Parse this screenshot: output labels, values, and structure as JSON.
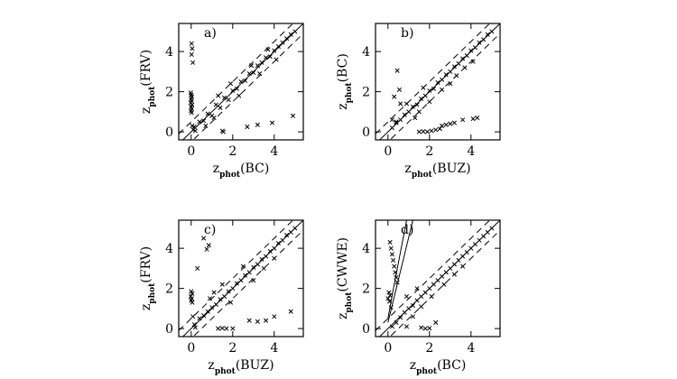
{
  "chart_data": [
    {
      "type": "scatter",
      "panel_label": "a)",
      "xlabel": {
        "main": "z",
        "sub": "phot",
        "tail": "(BC)"
      },
      "ylabel": {
        "main": "z",
        "sub": "phot",
        "tail": "(FRV)"
      },
      "xlim": [
        -0.6,
        5.4
      ],
      "ylim": [
        -0.4,
        5.4
      ],
      "xticks": [
        0,
        2,
        4
      ],
      "yticks": [
        0,
        2,
        4
      ],
      "xtick_labels": [
        "0",
        "2",
        "4"
      ],
      "ytick_labels": [
        "0",
        "2",
        "4"
      ],
      "reference_lines": {
        "identity": true,
        "dashed_offsets": [
          0.5,
          -0.5
        ]
      },
      "extra_lines": [],
      "points": [
        [
          0.02,
          4.4
        ],
        [
          0.05,
          4.15
        ],
        [
          0.02,
          3.85
        ],
        [
          0.08,
          3.45
        ],
        [
          -0.02,
          1.95
        ],
        [
          0.0,
          1.85
        ],
        [
          0.03,
          1.75
        ],
        [
          0.0,
          1.65
        ],
        [
          0.02,
          1.55
        ],
        [
          -0.02,
          1.45
        ],
        [
          0.04,
          1.35
        ],
        [
          0.0,
          1.25
        ],
        [
          0.03,
          1.15
        ],
        [
          -0.01,
          1.05
        ],
        [
          0.02,
          0.95
        ],
        [
          0.05,
          0.3
        ],
        [
          0.1,
          0.1
        ],
        [
          0.15,
          0.25
        ],
        [
          0.2,
          0.05
        ],
        [
          1.5,
          0.05
        ],
        [
          1.55,
          0.0
        ],
        [
          2.7,
          0.25
        ],
        [
          3.2,
          0.35
        ],
        [
          3.9,
          0.45
        ],
        [
          4.9,
          0.8
        ],
        [
          0.4,
          0.5
        ],
        [
          0.6,
          0.55
        ],
        [
          0.8,
          0.9
        ],
        [
          1.0,
          0.8
        ],
        [
          1.2,
          1.35
        ],
        [
          1.4,
          1.2
        ],
        [
          1.6,
          1.7
        ],
        [
          1.8,
          1.6
        ],
        [
          2.0,
          2.05
        ],
        [
          2.2,
          2.15
        ],
        [
          2.4,
          2.5
        ],
        [
          2.6,
          2.55
        ],
        [
          2.8,
          2.9
        ],
        [
          3.0,
          2.95
        ],
        [
          3.2,
          3.3
        ],
        [
          3.4,
          3.45
        ],
        [
          3.6,
          3.7
        ],
        [
          3.8,
          3.75
        ],
        [
          4.0,
          4.05
        ],
        [
          4.2,
          4.25
        ],
        [
          4.4,
          4.45
        ],
        [
          4.6,
          4.65
        ],
        [
          4.8,
          4.85
        ],
        [
          5.0,
          5.0
        ],
        [
          0.7,
          0.3
        ],
        [
          1.1,
          0.7
        ],
        [
          1.3,
          1.8
        ],
        [
          1.9,
          2.4
        ],
        [
          2.3,
          1.8
        ],
        [
          2.9,
          3.3
        ],
        [
          3.3,
          2.9
        ],
        [
          3.7,
          4.1
        ],
        [
          4.1,
          3.6
        ]
      ]
    },
    {
      "type": "scatter",
      "panel_label": "b)",
      "xlabel": {
        "main": "z",
        "sub": "phot",
        "tail": "(BUZ)"
      },
      "ylabel": {
        "main": "z",
        "sub": "phot",
        "tail": "(BC)"
      },
      "xlim": [
        -0.6,
        5.4
      ],
      "ylim": [
        -0.4,
        5.4
      ],
      "xticks": [
        0,
        2,
        4
      ],
      "yticks": [
        0,
        2,
        4
      ],
      "xtick_labels": [
        "0",
        "2",
        "4"
      ],
      "ytick_labels": [
        "0",
        "2",
        "4"
      ],
      "reference_lines": {
        "identity": true,
        "dashed_offsets": [
          0.5,
          -0.5
        ]
      },
      "extra_lines": [],
      "points": [
        [
          0.45,
          3.05
        ],
        [
          0.55,
          2.1
        ],
        [
          0.3,
          1.75
        ],
        [
          0.6,
          1.4
        ],
        [
          0.2,
          0.6
        ],
        [
          0.4,
          0.45
        ],
        [
          1.5,
          0.0
        ],
        [
          1.7,
          0.02
        ],
        [
          1.9,
          0.0
        ],
        [
          2.1,
          0.05
        ],
        [
          2.3,
          0.1
        ],
        [
          2.5,
          0.15
        ],
        [
          2.6,
          0.3
        ],
        [
          2.8,
          0.35
        ],
        [
          3.0,
          0.4
        ],
        [
          3.2,
          0.45
        ],
        [
          3.6,
          0.6
        ],
        [
          4.1,
          0.65
        ],
        [
          4.3,
          0.7
        ],
        [
          0.2,
          0.2
        ],
        [
          0.4,
          0.5
        ],
        [
          0.6,
          0.6
        ],
        [
          0.8,
          0.85
        ],
        [
          1.0,
          1.0
        ],
        [
          1.2,
          1.25
        ],
        [
          1.4,
          1.35
        ],
        [
          1.6,
          1.65
        ],
        [
          1.8,
          1.8
        ],
        [
          2.0,
          2.05
        ],
        [
          2.2,
          2.15
        ],
        [
          2.4,
          2.45
        ],
        [
          2.6,
          2.6
        ],
        [
          2.8,
          2.85
        ],
        [
          3.0,
          3.0
        ],
        [
          3.2,
          3.25
        ],
        [
          3.4,
          3.4
        ],
        [
          3.6,
          3.65
        ],
        [
          3.8,
          3.8
        ],
        [
          4.0,
          4.05
        ],
        [
          4.2,
          4.2
        ],
        [
          4.4,
          4.45
        ],
        [
          4.6,
          4.6
        ],
        [
          4.8,
          4.85
        ],
        [
          5.0,
          5.0
        ],
        [
          1.3,
          0.7
        ],
        [
          1.5,
          1.0
        ],
        [
          2.0,
          1.5
        ],
        [
          2.6,
          2.1
        ],
        [
          3.0,
          2.4
        ],
        [
          3.3,
          2.8
        ],
        [
          3.7,
          3.2
        ],
        [
          4.1,
          3.5
        ],
        [
          0.9,
          1.4
        ],
        [
          1.7,
          2.2
        ]
      ]
    },
    {
      "type": "scatter",
      "panel_label": "c)",
      "xlabel": {
        "main": "z",
        "sub": "phot",
        "tail": "(BUZ)"
      },
      "ylabel": {
        "main": "z",
        "sub": "phot",
        "tail": "(FRV)"
      },
      "xlim": [
        -0.6,
        5.4
      ],
      "ylim": [
        -0.4,
        5.4
      ],
      "xticks": [
        0,
        2,
        4
      ],
      "yticks": [
        0,
        2,
        4
      ],
      "xtick_labels": [
        "0",
        "2",
        "4"
      ],
      "ytick_labels": [
        "0",
        "2",
        "4"
      ],
      "reference_lines": {
        "identity": true,
        "dashed_offsets": [
          0.5,
          -0.5
        ]
      },
      "extra_lines": [],
      "points": [
        [
          0.6,
          4.5
        ],
        [
          0.85,
          4.15
        ],
        [
          0.75,
          3.95
        ],
        [
          0.3,
          3.0
        ],
        [
          0.0,
          1.85
        ],
        [
          0.05,
          1.75
        ],
        [
          -0.02,
          1.6
        ],
        [
          0.03,
          1.5
        ],
        [
          0.0,
          1.4
        ],
        [
          0.05,
          1.3
        ],
        [
          0.08,
          0.6
        ],
        [
          0.15,
          0.2
        ],
        [
          0.2,
          0.05
        ],
        [
          1.3,
          0.0
        ],
        [
          1.5,
          0.02
        ],
        [
          1.7,
          0.0
        ],
        [
          2.0,
          0.0
        ],
        [
          2.8,
          0.4
        ],
        [
          3.2,
          0.35
        ],
        [
          3.6,
          0.4
        ],
        [
          4.0,
          0.6
        ],
        [
          4.8,
          0.85
        ],
        [
          0.4,
          0.5
        ],
        [
          0.6,
          0.65
        ],
        [
          0.8,
          0.85
        ],
        [
          1.0,
          1.05
        ],
        [
          1.2,
          1.2
        ],
        [
          1.4,
          1.45
        ],
        [
          1.6,
          1.6
        ],
        [
          1.8,
          1.85
        ],
        [
          2.0,
          2.0
        ],
        [
          2.2,
          2.25
        ],
        [
          2.4,
          2.4
        ],
        [
          2.6,
          2.65
        ],
        [
          2.8,
          2.8
        ],
        [
          3.0,
          3.05
        ],
        [
          3.2,
          3.2
        ],
        [
          3.4,
          3.45
        ],
        [
          3.6,
          3.6
        ],
        [
          3.8,
          3.85
        ],
        [
          4.0,
          4.0
        ],
        [
          4.2,
          4.25
        ],
        [
          4.4,
          4.4
        ],
        [
          4.6,
          4.65
        ],
        [
          4.8,
          4.8
        ],
        [
          5.0,
          5.0
        ],
        [
          1.1,
          1.8
        ],
        [
          1.5,
          2.2
        ],
        [
          0.9,
          1.5
        ],
        [
          2.5,
          3.1
        ],
        [
          3.0,
          2.4
        ],
        [
          3.5,
          3.0
        ],
        [
          4.0,
          3.5
        ],
        [
          1.9,
          1.3
        ]
      ]
    },
    {
      "type": "scatter",
      "panel_label": "d)",
      "xlabel": {
        "main": "z",
        "sub": "phot",
        "tail": "(BC)"
      },
      "ylabel": {
        "main": "z",
        "sub": "phot",
        "tail": "(CWWE)"
      },
      "xlim": [
        -0.6,
        5.4
      ],
      "ylim": [
        -0.4,
        5.4
      ],
      "xticks": [
        0,
        2,
        4
      ],
      "yticks": [
        0,
        2,
        4
      ],
      "xtick_labels": [
        "0",
        "2",
        "4"
      ],
      "ytick_labels": [
        "0",
        "2",
        "4"
      ],
      "reference_lines": {
        "identity": true,
        "dashed_offsets": [
          0.5,
          -0.5
        ]
      },
      "extra_lines": [
        {
          "style": "solid",
          "points": [
            [
              0.0,
              0.5
            ],
            [
              0.3,
              2.2
            ],
            [
              0.6,
              3.8
            ],
            [
              0.9,
              5.4
            ]
          ]
        },
        {
          "style": "solid",
          "points": [
            [
              0.0,
              0.3
            ],
            [
              0.4,
              2.0
            ],
            [
              0.8,
              3.7
            ],
            [
              1.2,
              5.4
            ]
          ]
        }
      ],
      "points": [
        [
          0.1,
          4.3
        ],
        [
          0.15,
          4.0
        ],
        [
          0.2,
          3.7
        ],
        [
          0.25,
          3.4
        ],
        [
          0.3,
          3.1
        ],
        [
          0.35,
          2.8
        ],
        [
          0.4,
          2.55
        ],
        [
          0.45,
          2.3
        ],
        [
          0.05,
          1.8
        ],
        [
          0.1,
          1.65
        ],
        [
          0.0,
          1.5
        ],
        [
          0.08,
          1.35
        ],
        [
          0.15,
          1.05
        ],
        [
          1.6,
          0.05
        ],
        [
          1.8,
          0.0
        ],
        [
          2.0,
          0.02
        ],
        [
          0.9,
          0.1
        ],
        [
          2.3,
          0.3
        ],
        [
          0.2,
          0.1
        ],
        [
          0.4,
          0.3
        ],
        [
          0.6,
          0.55
        ],
        [
          0.8,
          0.8
        ],
        [
          1.0,
          1.0
        ],
        [
          1.2,
          1.15
        ],
        [
          1.4,
          1.4
        ],
        [
          1.6,
          1.6
        ],
        [
          1.8,
          1.8
        ],
        [
          2.0,
          2.0
        ],
        [
          2.2,
          2.2
        ],
        [
          2.4,
          2.4
        ],
        [
          2.6,
          2.6
        ],
        [
          2.8,
          2.8
        ],
        [
          3.0,
          3.0
        ],
        [
          3.2,
          3.2
        ],
        [
          3.4,
          3.4
        ],
        [
          3.6,
          3.6
        ],
        [
          3.8,
          3.8
        ],
        [
          4.0,
          4.0
        ],
        [
          4.2,
          4.2
        ],
        [
          4.4,
          4.4
        ],
        [
          4.6,
          4.6
        ],
        [
          4.8,
          4.8
        ],
        [
          5.0,
          5.0
        ],
        [
          1.2,
          0.6
        ],
        [
          1.6,
          1.1
        ],
        [
          2.1,
          1.6
        ],
        [
          2.7,
          2.2
        ],
        [
          3.2,
          2.7
        ],
        [
          3.6,
          3.1
        ],
        [
          0.9,
          1.6
        ],
        [
          1.4,
          2.0
        ]
      ]
    }
  ]
}
